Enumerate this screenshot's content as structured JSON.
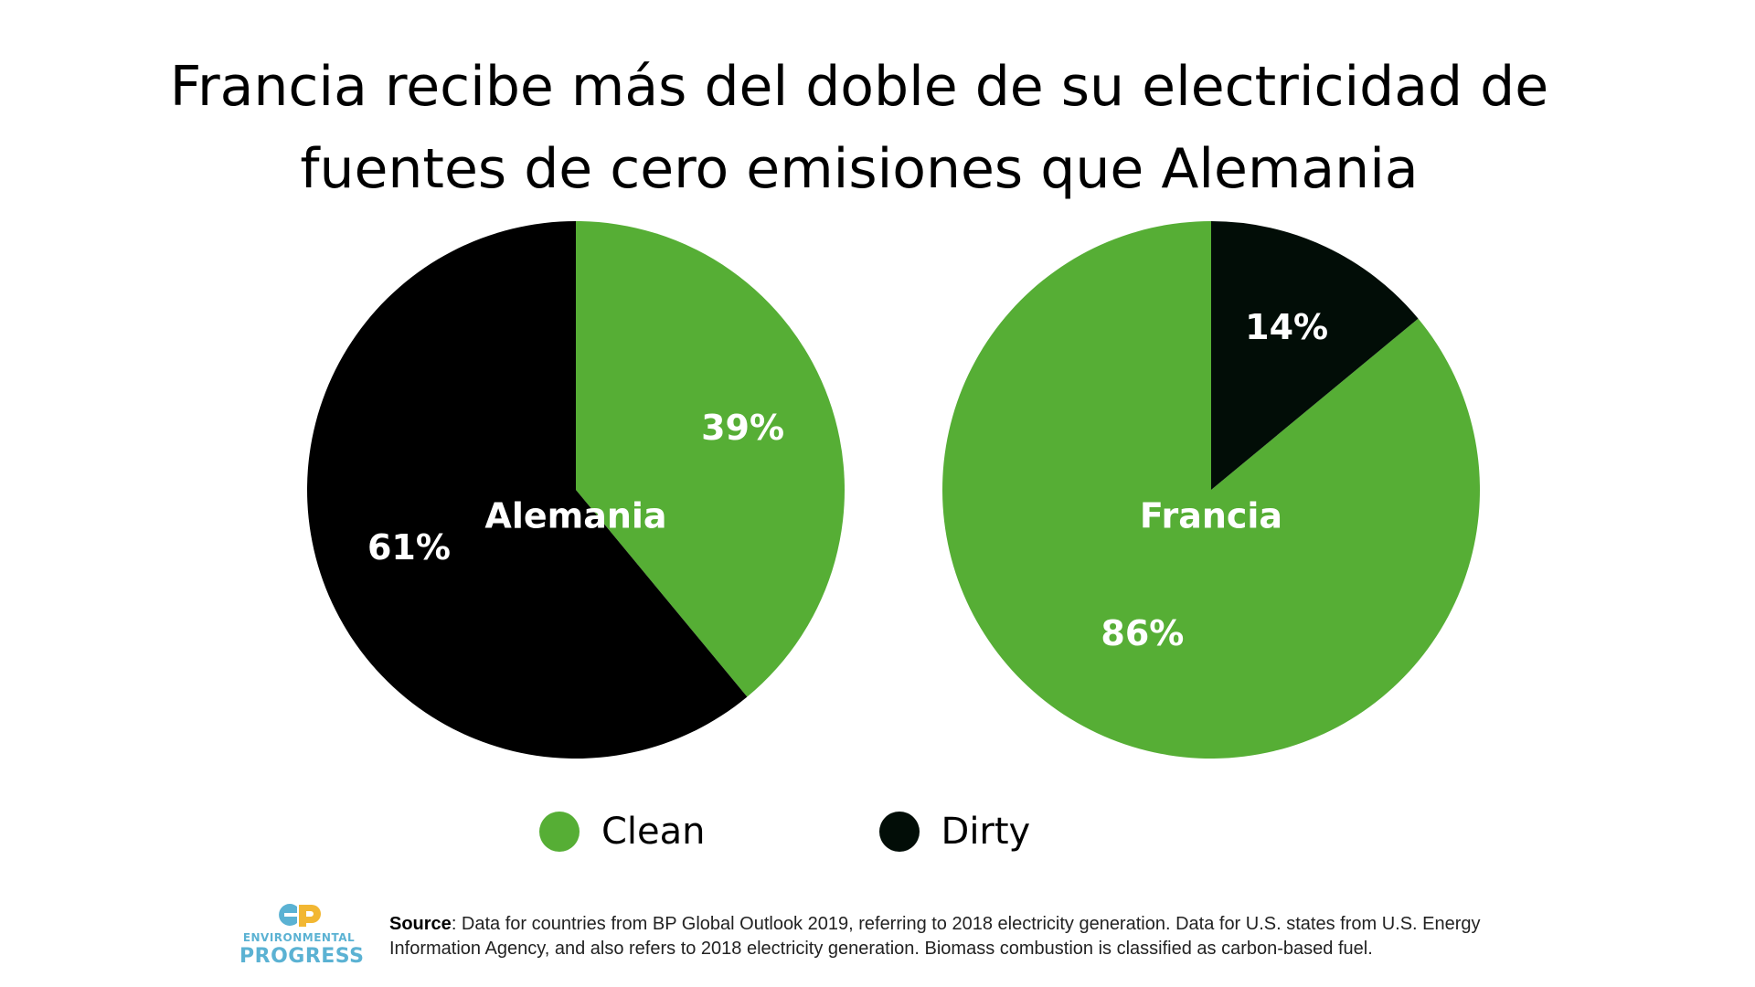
{
  "title": {
    "line1": "Francia recibe más del doble de su electricidad de",
    "line2": "fuentes de cero emisiones que Alemania"
  },
  "colors": {
    "clean": "#56AE35",
    "dirty": "#000000",
    "dirty_france": "#020D07",
    "logo_teal": "#5BB2D3",
    "logo_yellow": "#F2B733"
  },
  "chart_data": [
    {
      "type": "pie",
      "title": "Alemania",
      "categories": [
        "Clean",
        "Dirty"
      ],
      "values": [
        39,
        61
      ],
      "labels": [
        "39%",
        "61%"
      ]
    },
    {
      "type": "pie",
      "title": "Francia",
      "categories": [
        "Clean",
        "Dirty"
      ],
      "values": [
        86,
        14
      ],
      "labels": [
        "86%",
        "14%"
      ]
    }
  ],
  "legend": {
    "items": [
      {
        "label": "Clean",
        "color": "#56AE35"
      },
      {
        "label": "Dirty",
        "color": "#020D07"
      }
    ]
  },
  "logo": {
    "icon": "ep-logo-icon",
    "line1": "ENVIRONMENTAL",
    "line2": "PROGRESS"
  },
  "source": {
    "label": "Source",
    "text": ": Data for countries from BP Global Outlook 2019, referring to 2018 electricity generation. Data for U.S. states from U.S. Energy Information Agency, and also refers to 2018 electricity generation. Biomass combustion is classified as carbon-based fuel."
  }
}
